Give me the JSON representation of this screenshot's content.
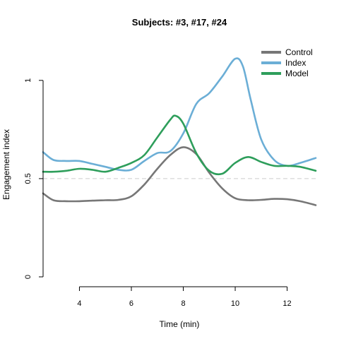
{
  "chart_data": {
    "type": "line",
    "title": "Subjects: #3, #17, #24",
    "xlabel": "Time (min)",
    "ylabel": "Engagement index",
    "xlim": [
      2.6,
      13.1
    ],
    "ylim": [
      0,
      1.1
    ],
    "x_ticks": [
      4,
      6,
      8,
      10,
      12
    ],
    "y_ticks": [
      0,
      0.5,
      1
    ],
    "x_tick_labels": [
      "4",
      "6",
      "8",
      "10",
      "12"
    ],
    "y_tick_labels": [
      "0",
      "0.5",
      "1"
    ],
    "reference_line": {
      "y": 0.5,
      "style": "dashed",
      "color": "#cccccc"
    },
    "grid": false,
    "legend_position": "top-right",
    "series": [
      {
        "name": "Control",
        "color": "#777777",
        "x": [
          2.6,
          3.0,
          3.5,
          4.0,
          4.5,
          5.0,
          5.5,
          6.0,
          6.5,
          7.0,
          7.5,
          8.0,
          8.5,
          9.0,
          9.5,
          10.0,
          10.5,
          11.0,
          11.5,
          12.0,
          12.5,
          13.1
        ],
        "y": [
          0.425,
          0.39,
          0.385,
          0.385,
          0.388,
          0.39,
          0.392,
          0.41,
          0.47,
          0.55,
          0.62,
          0.66,
          0.625,
          0.53,
          0.45,
          0.4,
          0.39,
          0.392,
          0.397,
          0.395,
          0.385,
          0.365
        ]
      },
      {
        "name": "Index",
        "color": "#6baed6",
        "x": [
          2.6,
          3.0,
          3.5,
          4.0,
          4.5,
          5.0,
          5.5,
          6.0,
          6.5,
          7.0,
          7.5,
          8.0,
          8.5,
          9.0,
          9.5,
          10.0,
          10.3,
          10.6,
          11.0,
          11.5,
          12.0,
          12.5,
          13.1
        ],
        "y": [
          0.635,
          0.595,
          0.59,
          0.59,
          0.575,
          0.56,
          0.545,
          0.545,
          0.59,
          0.63,
          0.64,
          0.73,
          0.88,
          0.935,
          1.02,
          1.11,
          1.07,
          0.9,
          0.7,
          0.595,
          0.565,
          0.58,
          0.605
        ]
      },
      {
        "name": "Model",
        "color": "#2e9e5b",
        "x": [
          2.6,
          3.0,
          3.5,
          4.0,
          4.5,
          5.0,
          5.5,
          6.0,
          6.5,
          7.0,
          7.5,
          7.7,
          8.0,
          8.5,
          9.0,
          9.5,
          10.0,
          10.5,
          11.0,
          11.5,
          12.0,
          12.5,
          13.1
        ],
        "y": [
          0.535,
          0.535,
          0.54,
          0.55,
          0.545,
          0.535,
          0.555,
          0.58,
          0.62,
          0.71,
          0.8,
          0.82,
          0.78,
          0.63,
          0.54,
          0.525,
          0.58,
          0.61,
          0.585,
          0.565,
          0.565,
          0.56,
          0.54
        ]
      }
    ]
  }
}
